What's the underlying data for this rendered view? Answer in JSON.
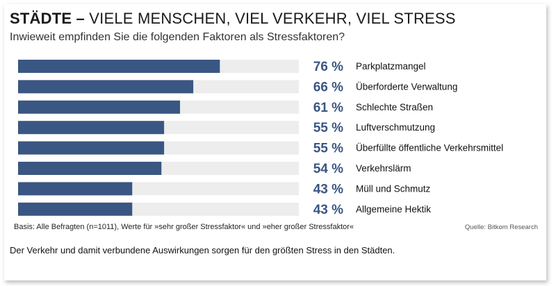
{
  "header": {
    "title_bold": "STÄDTE –",
    "title_rest": " VIELE MENSCHEN, VIEL VERKEHR, VIEL STRESS",
    "subtitle": "Inwieweit empfinden Sie die folgenden Faktoren als Stressfaktoren?"
  },
  "chart_data": {
    "type": "bar",
    "orientation": "horizontal",
    "categories": [
      "Parkplatzmangel",
      "Überforderte Verwaltung",
      "Schlechte Straßen",
      "Luftverschmutzung",
      "Überfüllte öffentliche Verkehrsmittel",
      "Verkehrslärm",
      "Müll und Schmutz",
      "Allgemeine Hektik"
    ],
    "values": [
      76,
      66,
      61,
      55,
      55,
      54,
      43,
      43
    ],
    "value_labels": [
      "76 %",
      "66 %",
      "61 %",
      "55 %",
      "55 %",
      "54 %",
      "43 %",
      "43 %"
    ],
    "xlim": [
      0,
      100
    ],
    "grid": false,
    "colors": {
      "bar": "#3a5683",
      "track": "#ededed",
      "value_text": "#3a5683"
    }
  },
  "footer": {
    "basis": "Basis: Alle Befragten (n=1011), Werte für »sehr großer Stressfaktor« und »eher großer Stressfaktor«",
    "source": "Quelle: Bitkom Research",
    "caption": "Der Verkehr und damit verbundene Auswirkungen sorgen für den größten Stress in den Städten."
  }
}
